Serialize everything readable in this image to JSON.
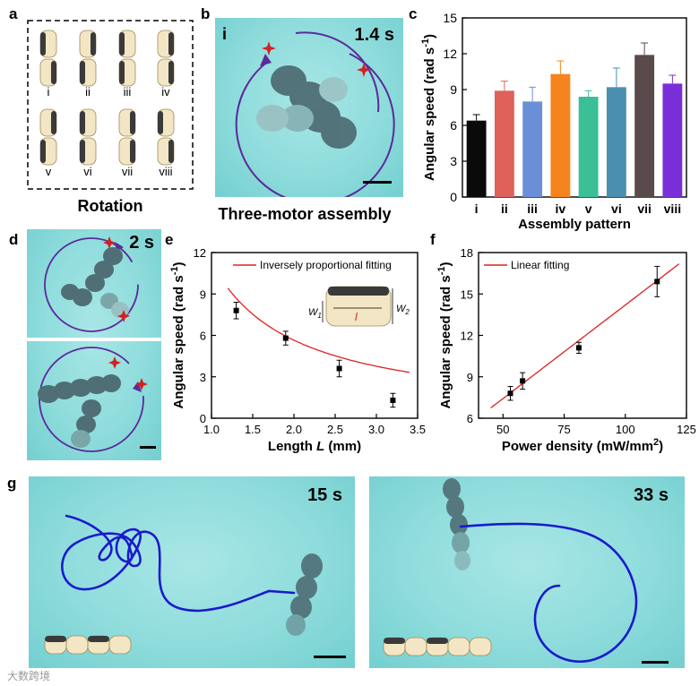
{
  "panel_labels": {
    "a": "a",
    "b": "b",
    "c": "c",
    "d": "d",
    "e": "e",
    "f": "f",
    "g": "g"
  },
  "panel_a": {
    "patterns_top": [
      "i",
      "ii",
      "iii",
      "iv"
    ],
    "patterns_bottom": [
      "v",
      "vi",
      "vii",
      "viii"
    ],
    "caption": "Rotation"
  },
  "panel_b": {
    "index": "i",
    "time": "1.4 s",
    "caption": "Three-motor assembly"
  },
  "panel_d": {
    "time": "2 s"
  },
  "panel_g": {
    "left_time": "15 s",
    "right_time": "33 s"
  },
  "colors": {
    "trajectory": "#1a1acc",
    "fit_line": "#e02020",
    "arrow": "#5a2a9a",
    "star": "#d42020",
    "cyan": "#8fdcdc"
  },
  "chart_data": [
    {
      "id": "c",
      "type": "bar",
      "categories": [
        "i",
        "ii",
        "iii",
        "iv",
        "v",
        "vi",
        "vii",
        "viii"
      ],
      "values": [
        6.4,
        8.9,
        8.0,
        10.3,
        8.4,
        9.2,
        11.9,
        9.5
      ],
      "errors": [
        0.5,
        0.8,
        1.2,
        1.1,
        0.5,
        1.6,
        1.0,
        0.7
      ],
      "colors": [
        "#0a0a0a",
        "#e0605a",
        "#6b8fd6",
        "#f5841e",
        "#3bbf96",
        "#4a8fb0",
        "#5a4a4a",
        "#7a2ed8"
      ],
      "ylabel": "Angular speed (rad s",
      "ylabel_sup": "-1",
      "ylabel_end": ")",
      "xlabel": "Assembly pattern",
      "ylim": [
        0,
        15
      ],
      "yticks": [
        "0",
        "3",
        "6",
        "9",
        "12",
        "15"
      ]
    },
    {
      "id": "e",
      "type": "scatter",
      "x": [
        1.3,
        1.9,
        2.55,
        3.2
      ],
      "y": [
        7.8,
        5.8,
        3.6,
        1.3
      ],
      "errors": [
        0.6,
        0.5,
        0.6,
        0.5
      ],
      "fit": {
        "name": "Inversely proportional fitting",
        "k": 11.3,
        "x_range": [
          1.2,
          3.4
        ]
      },
      "xlabel": "Length ",
      "xlabel_var": "L",
      "xlabel_unit": " (mm)",
      "ylabel": "Angular speed (rad s",
      "ylabel_sup": "-1",
      "ylabel_end": ")",
      "xlim": [
        1.0,
        3.5
      ],
      "ylim": [
        0,
        12
      ],
      "xticks": [
        "1.0",
        "1.5",
        "2.0",
        "2.5",
        "3.0",
        "3.5"
      ],
      "yticks": [
        "0",
        "3",
        "6",
        "9",
        "12"
      ],
      "inset": {
        "w1": "W",
        "w1_sub": "1",
        "w2": "W",
        "w2_sub": "2",
        "l": "l"
      }
    },
    {
      "id": "f",
      "type": "scatter",
      "x": [
        53,
        58,
        81,
        113
      ],
      "y": [
        7.8,
        8.7,
        11.1,
        15.9
      ],
      "errors": [
        0.5,
        0.6,
        0.4,
        1.1
      ],
      "fit": {
        "name": "Linear fitting",
        "slope": 0.1355,
        "intercept": 0.65,
        "x_range": [
          45,
          122
        ]
      },
      "xlabel": "Power density (mW/mm",
      "xlabel_sup": "2",
      "xlabel_end": ")",
      "ylabel": "Angular speed (rad s",
      "ylabel_sup": "-1",
      "ylabel_end": ")",
      "xlim": [
        40,
        125
      ],
      "ylim": [
        6,
        18
      ],
      "xticks": [
        "50",
        "75",
        "100",
        "125"
      ],
      "yticks": [
        "6",
        "9",
        "12",
        "15",
        "18"
      ]
    }
  ],
  "watermark": "大数跨境"
}
